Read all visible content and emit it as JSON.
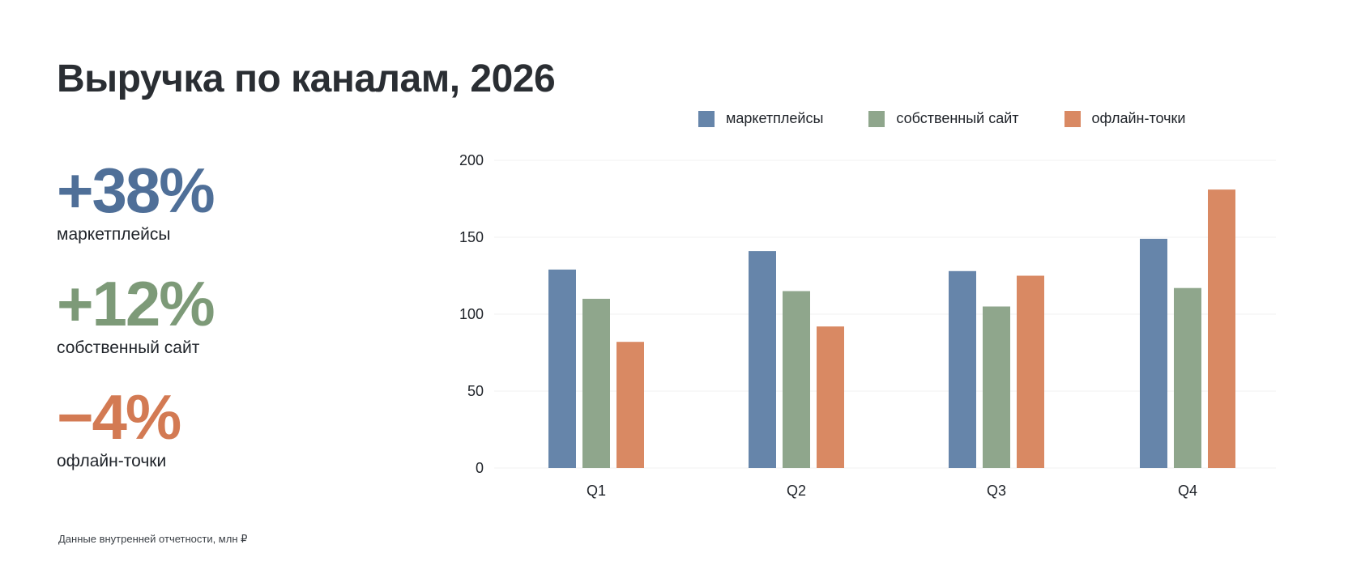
{
  "title": "Выручка по каналам, 2026",
  "kpis": [
    {
      "value": "+38%",
      "label": "маркетплейсы",
      "color": "#4f6f98"
    },
    {
      "value": "+12%",
      "label": "собственный сайт",
      "color": "#7d9a78"
    },
    {
      "value": "−4%",
      "label": "офлайн-точки",
      "color": "#d37a53"
    }
  ],
  "footnote": "Данные внутренней отчетности, млн ₽",
  "colors": {
    "marketplaces": "#6685aa",
    "site": "#8fa68c",
    "offline": "#d98963",
    "grid": "#f0f0f0"
  },
  "chart_data": {
    "type": "bar",
    "categories": [
      "Q1",
      "Q2",
      "Q3",
      "Q4"
    ],
    "series": [
      {
        "name": "маркетплейсы",
        "color": "#6685aa",
        "values": [
          129,
          141,
          128,
          149
        ]
      },
      {
        "name": "собственный сайт",
        "color": "#8fa68c",
        "values": [
          110,
          115,
          105,
          117
        ]
      },
      {
        "name": "офлайн-точки",
        "color": "#d98963",
        "values": [
          82,
          92,
          125,
          181
        ]
      }
    ],
    "yticks": [
      "0",
      "50",
      "100",
      "150",
      "200"
    ],
    "ylim": [
      0,
      200
    ],
    "grid": true,
    "legend": "top"
  }
}
